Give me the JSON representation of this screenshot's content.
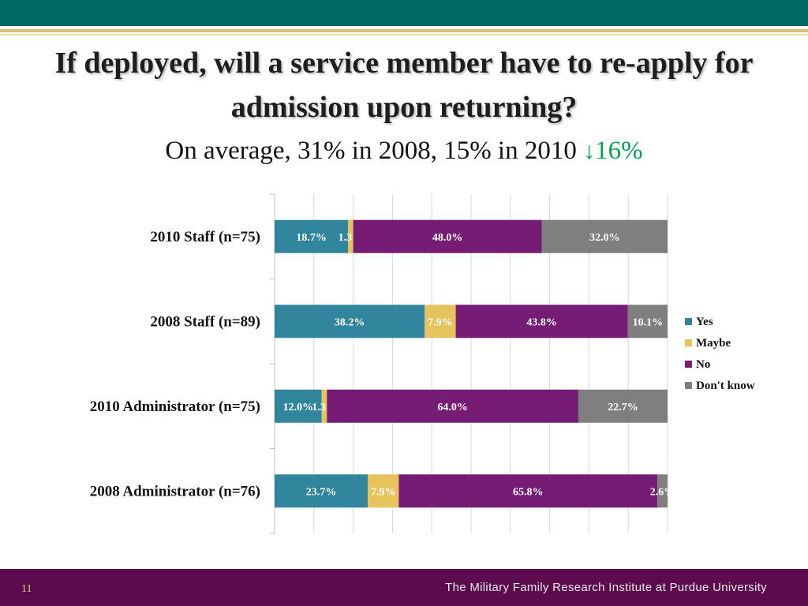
{
  "title": "If deployed, will a service member have to re-apply for admission upon returning?",
  "subtitle": {
    "text": "On average, 31% in 2008, 15% in 2010",
    "arrow": "↓",
    "change": "16%"
  },
  "colors": {
    "header": "#006b63",
    "footer": "#5c0a4e",
    "change": "#00a651"
  },
  "chart_data": {
    "type": "bar",
    "orientation": "horizontal",
    "stacked": true,
    "categories": [
      "2010 Staff (n=75)",
      "2008 Staff (n=89)",
      "2010 Administrator (n=75)",
      "2008 Administrator (n=76)"
    ],
    "series": [
      {
        "name": "Yes",
        "color": "#31859c",
        "values": [
          18.7,
          38.2,
          12.0,
          23.7
        ],
        "labels": [
          "18.7%",
          "38.2%",
          "12.0%",
          "23.7%"
        ]
      },
      {
        "name": "Maybe",
        "color": "#e6c35c",
        "values": [
          1.3,
          7.9,
          1.3,
          7.9
        ],
        "labels": [
          "1.3%",
          "7.9%",
          "1.3%",
          "7.9%"
        ]
      },
      {
        "name": "No",
        "color": "#751c74",
        "values": [
          48.0,
          43.8,
          64.0,
          65.8
        ],
        "labels": [
          "48.0%",
          "43.8%",
          "64.0%",
          "65.8%"
        ]
      },
      {
        "name": "Don't know",
        "color": "#7f7f7f",
        "values": [
          32.0,
          10.1,
          22.7,
          2.6
        ],
        "labels": [
          "32.0%",
          "10.1%",
          "22.7%",
          "2.6%"
        ]
      }
    ],
    "xlim": [
      0,
      100
    ],
    "grid": true,
    "legend": "right"
  },
  "footer": {
    "page_number": "11",
    "institute": "The Military Family Research Institute at Purdue University"
  }
}
